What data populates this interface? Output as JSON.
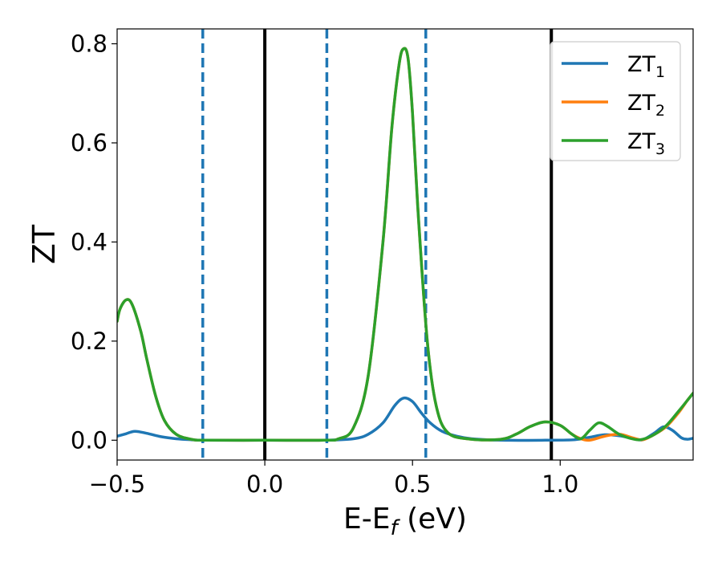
{
  "chart_data": {
    "type": "line",
    "xlabel": "E-E",
    "xlabel_sub": "f",
    "xlabel_unit": " (eV)",
    "ylabel": "ZT",
    "xlim": [
      -0.5,
      1.45
    ],
    "ylim": [
      -0.04,
      0.83
    ],
    "xticks": [
      -0.5,
      0.0,
      0.5,
      1.0
    ],
    "xtick_labels": [
      "−0.5",
      "0.0",
      "0.5",
      "1.0"
    ],
    "yticks": [
      0.0,
      0.2,
      0.4,
      0.6,
      0.8
    ],
    "ytick_labels": [
      "0.0",
      "0.2",
      "0.4",
      "0.6",
      "0.8"
    ],
    "grid": false,
    "legend_position": "top-right",
    "vlines": [
      {
        "x": -0.21,
        "style": "dashed",
        "color": "#1f77b4"
      },
      {
        "x": 0.0,
        "style": "solid",
        "color": "#000000"
      },
      {
        "x": 0.21,
        "style": "dashed",
        "color": "#1f77b4"
      },
      {
        "x": 0.545,
        "style": "dashed",
        "color": "#1f77b4"
      },
      {
        "x": 0.97,
        "style": "solid",
        "color": "#000000"
      }
    ],
    "series": [
      {
        "name": "ZT",
        "sub": "1",
        "color": "#1f77b4",
        "points": [
          [
            -0.5,
            0.008
          ],
          [
            -0.47,
            0.013
          ],
          [
            -0.44,
            0.018
          ],
          [
            -0.4,
            0.014
          ],
          [
            -0.35,
            0.007
          ],
          [
            -0.3,
            0.003
          ],
          [
            -0.25,
            0.001
          ],
          [
            -0.2,
            0.0
          ],
          [
            0.0,
            0.0
          ],
          [
            0.2,
            0.0
          ],
          [
            0.3,
            0.003
          ],
          [
            0.35,
            0.012
          ],
          [
            0.4,
            0.035
          ],
          [
            0.44,
            0.07
          ],
          [
            0.47,
            0.085
          ],
          [
            0.5,
            0.078
          ],
          [
            0.53,
            0.055
          ],
          [
            0.56,
            0.035
          ],
          [
            0.6,
            0.018
          ],
          [
            0.65,
            0.008
          ],
          [
            0.7,
            0.003
          ],
          [
            0.8,
            0.0
          ],
          [
            0.95,
            0.0
          ],
          [
            1.05,
            0.001
          ],
          [
            1.1,
            0.006
          ],
          [
            1.15,
            0.011
          ],
          [
            1.2,
            0.009
          ],
          [
            1.25,
            0.003
          ],
          [
            1.28,
            0.001
          ],
          [
            1.32,
            0.015
          ],
          [
            1.35,
            0.027
          ],
          [
            1.38,
            0.02
          ],
          [
            1.41,
            0.005
          ],
          [
            1.43,
            0.002
          ],
          [
            1.45,
            0.004
          ]
        ]
      },
      {
        "name": "ZT",
        "sub": "2",
        "color": "#ff7f0e",
        "points": [
          [
            -0.5,
            0.24
          ],
          [
            -0.49,
            0.265
          ],
          [
            -0.47,
            0.283
          ],
          [
            -0.45,
            0.275
          ],
          [
            -0.42,
            0.22
          ],
          [
            -0.4,
            0.165
          ],
          [
            -0.37,
            0.09
          ],
          [
            -0.34,
            0.04
          ],
          [
            -0.3,
            0.012
          ],
          [
            -0.25,
            0.002
          ],
          [
            -0.2,
            0.0
          ],
          [
            0.0,
            0.0
          ],
          [
            0.2,
            0.0
          ],
          [
            0.25,
            0.003
          ],
          [
            0.3,
            0.025
          ],
          [
            0.35,
            0.13
          ],
          [
            0.4,
            0.4
          ],
          [
            0.43,
            0.63
          ],
          [
            0.455,
            0.76
          ],
          [
            0.47,
            0.79
          ],
          [
            0.485,
            0.77
          ],
          [
            0.5,
            0.66
          ],
          [
            0.52,
            0.45
          ],
          [
            0.55,
            0.2
          ],
          [
            0.58,
            0.07
          ],
          [
            0.62,
            0.015
          ],
          [
            0.7,
            0.002
          ],
          [
            0.8,
            0.002
          ],
          [
            0.85,
            0.012
          ],
          [
            0.9,
            0.028
          ],
          [
            0.95,
            0.037
          ],
          [
            1.0,
            0.03
          ],
          [
            1.04,
            0.012
          ],
          [
            1.07,
            0.003
          ],
          [
            1.1,
            0.0
          ],
          [
            1.15,
            0.008
          ],
          [
            1.2,
            0.012
          ],
          [
            1.25,
            0.004
          ],
          [
            1.28,
            0.001
          ],
          [
            1.32,
            0.012
          ],
          [
            1.36,
            0.028
          ],
          [
            1.4,
            0.055
          ],
          [
            1.43,
            0.08
          ],
          [
            1.45,
            0.095
          ]
        ]
      },
      {
        "name": "ZT",
        "sub": "3",
        "color": "#2ca02c",
        "points": [
          [
            -0.5,
            0.24
          ],
          [
            -0.49,
            0.265
          ],
          [
            -0.47,
            0.283
          ],
          [
            -0.45,
            0.275
          ],
          [
            -0.42,
            0.22
          ],
          [
            -0.4,
            0.165
          ],
          [
            -0.37,
            0.09
          ],
          [
            -0.34,
            0.04
          ],
          [
            -0.3,
            0.012
          ],
          [
            -0.25,
            0.002
          ],
          [
            -0.2,
            0.0
          ],
          [
            0.0,
            0.0
          ],
          [
            0.2,
            0.0
          ],
          [
            0.25,
            0.003
          ],
          [
            0.3,
            0.025
          ],
          [
            0.35,
            0.13
          ],
          [
            0.4,
            0.4
          ],
          [
            0.43,
            0.63
          ],
          [
            0.455,
            0.76
          ],
          [
            0.47,
            0.79
          ],
          [
            0.485,
            0.77
          ],
          [
            0.5,
            0.66
          ],
          [
            0.52,
            0.45
          ],
          [
            0.55,
            0.2
          ],
          [
            0.58,
            0.07
          ],
          [
            0.62,
            0.015
          ],
          [
            0.7,
            0.002
          ],
          [
            0.8,
            0.002
          ],
          [
            0.85,
            0.012
          ],
          [
            0.9,
            0.028
          ],
          [
            0.95,
            0.037
          ],
          [
            1.0,
            0.03
          ],
          [
            1.04,
            0.012
          ],
          [
            1.07,
            0.003
          ],
          [
            1.1,
            0.02
          ],
          [
            1.13,
            0.035
          ],
          [
            1.16,
            0.028
          ],
          [
            1.2,
            0.012
          ],
          [
            1.25,
            0.002
          ],
          [
            1.28,
            0.002
          ],
          [
            1.32,
            0.012
          ],
          [
            1.36,
            0.03
          ],
          [
            1.4,
            0.058
          ],
          [
            1.43,
            0.08
          ],
          [
            1.45,
            0.095
          ]
        ]
      }
    ]
  }
}
